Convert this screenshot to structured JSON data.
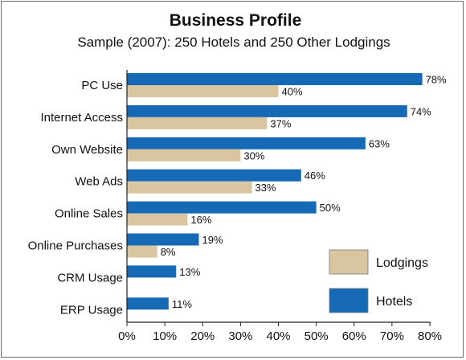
{
  "chart_data": {
    "type": "bar",
    "orientation": "horizontal",
    "title": "Business Profile",
    "subtitle": "Sample (2007): 250 Hotels and 250 Other Lodgings",
    "categories": [
      "PC Use",
      "Internet Access",
      "Own Website",
      "Web Ads",
      "Online Sales",
      "Online Purchases",
      "CRM Usage",
      "ERP Usage"
    ],
    "series": [
      {
        "name": "Hotels",
        "color": "#1569b5",
        "values": [
          78,
          74,
          63,
          46,
          50,
          19,
          13,
          11
        ],
        "labels": [
          "78%",
          "74%",
          "63%",
          "46%",
          "50%",
          "19%",
          "13%",
          "11%"
        ]
      },
      {
        "name": "Lodgings",
        "color": "#d9c6a0",
        "values": [
          40,
          37,
          30,
          33,
          16,
          8,
          null,
          null
        ],
        "labels": [
          "40%",
          "37%",
          "30%",
          "33%",
          "16%",
          "8%",
          "",
          ""
        ]
      }
    ],
    "xlim": [
      0,
      80
    ],
    "xticks": [
      "0%",
      "10%",
      "20%",
      "30%",
      "40%",
      "50%",
      "60%",
      "70%",
      "80%"
    ],
    "legend": {
      "position": "bottom-right",
      "entries": [
        {
          "label": "Lodgings",
          "color": "#d9c6a0"
        },
        {
          "label": "Hotels",
          "color": "#1569b5"
        }
      ]
    },
    "grid": false
  }
}
